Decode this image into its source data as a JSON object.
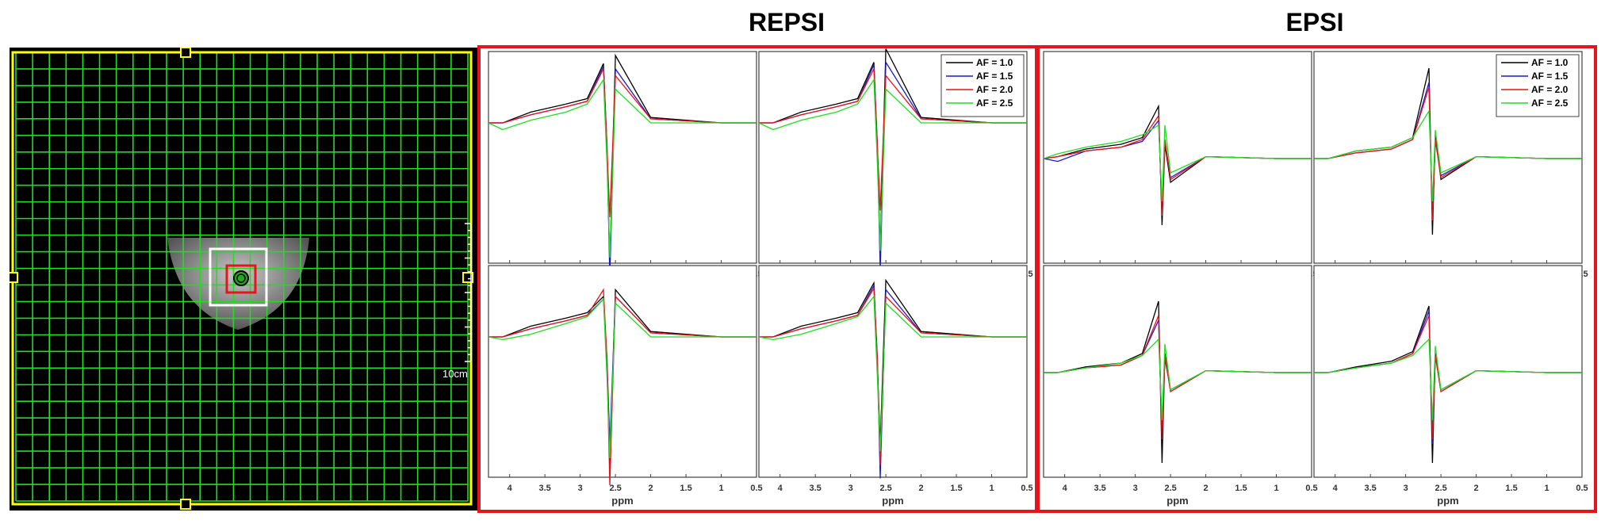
{
  "titles": {
    "repsi": "REPSI",
    "epsi": "EPSI"
  },
  "mri": {
    "scale_label": "10cm",
    "grid_color": "#22dd22",
    "border_color": "#ffff00",
    "voxel_color": "#e6141c",
    "roi_color": "#ffffff"
  },
  "colors": {
    "frame": "#e6141c",
    "af_1_0": "#000000",
    "af_1_5": "#1a1acc",
    "af_2_0": "#e6141c",
    "af_2_5": "#22dd22"
  },
  "chart_data": [
    {
      "group": "REPSI",
      "type": "line",
      "xlabel": "ppm",
      "xlim": [
        4.3,
        0.5
      ],
      "reversed_x": true,
      "xticks": [
        "4",
        "3.5",
        "3",
        "2.5",
        "2",
        "1.5",
        "1",
        "0.5"
      ],
      "legend": null,
      "series": [
        {
          "name": "AF = 1.0",
          "values": [
            0.0,
            0.08,
            0.14,
            0.18,
            0.44,
            -0.2,
            -1.05,
            0.5,
            0.04,
            0.0
          ]
        },
        {
          "name": "AF = 1.5",
          "values": [
            0.0,
            0.06,
            0.12,
            0.16,
            0.42,
            -0.15,
            -1.15,
            0.4,
            0.03,
            0.0
          ]
        },
        {
          "name": "AF = 2.0",
          "values": [
            0.0,
            0.06,
            0.12,
            0.16,
            0.4,
            -0.17,
            -0.7,
            0.35,
            0.03,
            0.0
          ]
        },
        {
          "name": "AF = 2.5",
          "values": [
            -0.05,
            0.02,
            0.08,
            0.14,
            0.32,
            -0.3,
            -1.0,
            0.25,
            0.0,
            0.0
          ]
        }
      ]
    },
    {
      "group": "REPSI",
      "type": "line",
      "xlabel": "ppm",
      "xlim": [
        4.3,
        0.5
      ],
      "reversed_x": true,
      "xticks": [
        "4",
        "3.5",
        "3",
        "2.5",
        "2",
        "1.5",
        "1",
        "0.5"
      ],
      "legend": "top-right",
      "series": [
        {
          "name": "AF = 1.0",
          "values": [
            0.0,
            0.08,
            0.14,
            0.18,
            0.45,
            -0.2,
            -0.95,
            0.55,
            0.04,
            0.0
          ]
        },
        {
          "name": "AF = 1.5",
          "values": [
            0.0,
            0.06,
            0.12,
            0.16,
            0.43,
            -0.15,
            -1.1,
            0.45,
            0.03,
            0.0
          ]
        },
        {
          "name": "AF = 2.0",
          "values": [
            0.0,
            0.06,
            0.12,
            0.16,
            0.4,
            -0.17,
            -0.65,
            0.35,
            0.03,
            0.0
          ]
        },
        {
          "name": "AF = 2.5",
          "values": [
            -0.05,
            0.02,
            0.08,
            0.14,
            0.32,
            -0.3,
            -0.95,
            0.25,
            0.0,
            0.0
          ]
        }
      ]
    },
    {
      "group": "REPSI",
      "type": "line",
      "xlabel": "ppm",
      "xlim": [
        4.3,
        0.5
      ],
      "reversed_x": true,
      "xticks": [
        "4",
        "3.5",
        "3",
        "2.5",
        "2",
        "1.5",
        "1",
        "0.5"
      ],
      "legend": null,
      "series": [
        {
          "name": "AF = 1.0",
          "values": [
            0.0,
            0.08,
            0.14,
            0.18,
            0.3,
            -0.2,
            -0.95,
            0.35,
            0.04,
            0.0
          ]
        },
        {
          "name": "AF = 1.5",
          "values": [
            0.0,
            0.06,
            0.12,
            0.16,
            0.28,
            -0.15,
            -0.8,
            0.3,
            0.03,
            0.0
          ]
        },
        {
          "name": "AF = 2.0",
          "values": [
            0.0,
            0.06,
            0.12,
            0.16,
            0.35,
            -0.17,
            -1.1,
            0.3,
            0.03,
            0.0
          ]
        },
        {
          "name": "AF = 2.5",
          "values": [
            -0.02,
            0.02,
            0.1,
            0.15,
            0.28,
            -0.3,
            -0.9,
            0.25,
            0.0,
            0.0
          ]
        }
      ]
    },
    {
      "group": "REPSI",
      "type": "line",
      "xlabel": "ppm",
      "xlim": [
        4.3,
        0.5
      ],
      "reversed_x": true,
      "xticks": [
        "4",
        "3.5",
        "3",
        "2.5",
        "2",
        "1.5",
        "1",
        "0.5"
      ],
      "legend": null,
      "series": [
        {
          "name": "AF = 1.0",
          "values": [
            0.0,
            0.08,
            0.14,
            0.18,
            0.4,
            -0.2,
            -0.8,
            0.42,
            0.04,
            0.0
          ]
        },
        {
          "name": "AF = 1.5",
          "values": [
            0.0,
            0.06,
            0.12,
            0.16,
            0.38,
            -0.15,
            -1.05,
            0.35,
            0.03,
            0.0
          ]
        },
        {
          "name": "AF = 2.0",
          "values": [
            0.0,
            0.06,
            0.12,
            0.16,
            0.36,
            -0.17,
            -0.95,
            0.3,
            0.03,
            0.0
          ]
        },
        {
          "name": "AF = 2.5",
          "values": [
            -0.02,
            0.02,
            0.1,
            0.15,
            0.3,
            -0.3,
            -0.85,
            0.25,
            0.0,
            0.0
          ]
        }
      ]
    },
    {
      "group": "EPSI",
      "type": "line",
      "xlabel": "ppm",
      "xlim": [
        4.3,
        0.5
      ],
      "reversed_x": true,
      "xticks": [
        "4",
        "3.5",
        "3",
        "2.5",
        "2",
        "1.5",
        "1",
        "0.5"
      ],
      "legend": null,
      "series": [
        {
          "name": "AF = 1.0",
          "values": [
            0.02,
            0.1,
            0.15,
            0.22,
            0.55,
            -0.7,
            0.15,
            -0.25,
            0.02,
            0.0
          ]
        },
        {
          "name": "AF = 1.5",
          "values": [
            -0.03,
            0.08,
            0.12,
            0.18,
            0.4,
            -0.55,
            0.18,
            -0.2,
            0.02,
            0.0
          ]
        },
        {
          "name": "AF = 2.0",
          "values": [
            0.02,
            0.08,
            0.12,
            0.2,
            0.45,
            -0.6,
            0.2,
            -0.22,
            0.02,
            0.0
          ]
        },
        {
          "name": "AF = 2.5",
          "values": [
            0.05,
            0.12,
            0.18,
            0.25,
            0.35,
            -0.45,
            0.35,
            -0.15,
            0.02,
            0.0
          ]
        }
      ]
    },
    {
      "group": "EPSI",
      "type": "line",
      "xlabel": "ppm",
      "xlim": [
        4.3,
        0.5
      ],
      "reversed_x": true,
      "xticks": [
        "4",
        "3.5",
        "3",
        "2.5",
        "2",
        "1.5",
        "1",
        "0.5"
      ],
      "legend": "top-right",
      "series": [
        {
          "name": "AF = 1.0",
          "values": [
            0.0,
            0.08,
            0.12,
            0.22,
            0.95,
            -0.8,
            0.25,
            -0.22,
            0.02,
            0.0
          ]
        },
        {
          "name": "AF = 1.5",
          "values": [
            0.0,
            0.06,
            0.1,
            0.2,
            0.8,
            -0.6,
            0.2,
            -0.18,
            0.02,
            0.0
          ]
        },
        {
          "name": "AF = 2.0",
          "values": [
            0.0,
            0.06,
            0.1,
            0.2,
            0.75,
            -0.65,
            0.2,
            -0.2,
            0.02,
            0.0
          ]
        },
        {
          "name": "AF = 2.5",
          "values": [
            0.0,
            0.08,
            0.12,
            0.22,
            0.5,
            -0.45,
            0.3,
            -0.15,
            0.02,
            0.0
          ]
        }
      ]
    },
    {
      "group": "EPSI",
      "type": "line",
      "xlabel": "ppm",
      "xlim": [
        4.3,
        0.5
      ],
      "reversed_x": true,
      "xticks": [
        "4",
        "3.5",
        "3",
        "2.5",
        "2",
        "1.5",
        "1",
        "0.5"
      ],
      "legend": null,
      "series": [
        {
          "name": "AF = 1.0",
          "values": [
            0.0,
            0.06,
            0.1,
            0.2,
            0.75,
            -0.95,
            0.2,
            -0.2,
            0.02,
            0.0
          ]
        },
        {
          "name": "AF = 1.5",
          "values": [
            0.0,
            0.05,
            0.08,
            0.18,
            0.55,
            -0.65,
            0.15,
            -0.18,
            0.02,
            0.0
          ]
        },
        {
          "name": "AF = 2.0",
          "values": [
            0.0,
            0.05,
            0.08,
            0.18,
            0.6,
            -0.7,
            0.18,
            -0.2,
            0.02,
            0.0
          ]
        },
        {
          "name": "AF = 2.5",
          "values": [
            0.0,
            0.05,
            0.1,
            0.18,
            0.35,
            -0.5,
            0.3,
            -0.18,
            0.02,
            0.0
          ]
        }
      ]
    },
    {
      "group": "EPSI",
      "type": "line",
      "xlabel": "ppm",
      "xlim": [
        4.3,
        0.5
      ],
      "reversed_x": true,
      "xticks": [
        "4",
        "3.5",
        "3",
        "2.5",
        "2",
        "1.5",
        "1",
        "0.5"
      ],
      "legend": null,
      "series": [
        {
          "name": "AF = 1.0",
          "values": [
            0.0,
            0.06,
            0.12,
            0.22,
            0.7,
            -0.95,
            0.2,
            -0.2,
            0.02,
            0.0
          ]
        },
        {
          "name": "AF = 1.5",
          "values": [
            0.0,
            0.05,
            0.1,
            0.2,
            0.65,
            -0.75,
            0.18,
            -0.18,
            0.02,
            0.0
          ]
        },
        {
          "name": "AF = 2.0",
          "values": [
            0.0,
            0.05,
            0.1,
            0.2,
            0.6,
            -0.7,
            0.18,
            -0.2,
            0.02,
            0.0
          ]
        },
        {
          "name": "AF = 2.5",
          "values": [
            0.0,
            0.05,
            0.1,
            0.18,
            0.35,
            -0.5,
            0.28,
            -0.18,
            0.02,
            0.0
          ]
        }
      ]
    }
  ]
}
